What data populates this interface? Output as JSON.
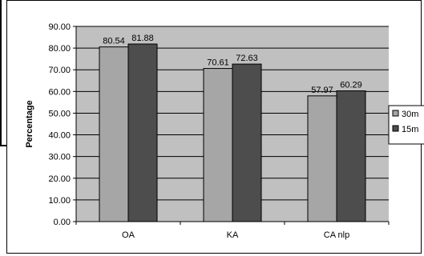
{
  "chart_data": {
    "type": "bar",
    "title": "",
    "xlabel": "",
    "ylabel": "Percentage",
    "ylim": [
      0,
      90
    ],
    "ytick_step": 10,
    "ytick_labels": [
      "0.00",
      "10.00",
      "20.00",
      "30.00",
      "40.00",
      "50.00",
      "60.00",
      "70.00",
      "80.00",
      "90.00"
    ],
    "categories": [
      "OA",
      "KA",
      "CA nlp"
    ],
    "series": [
      {
        "name": "30m",
        "values": [
          80.54,
          70.61,
          57.97
        ],
        "labels": [
          "80.54",
          "70.61",
          "57.97"
        ],
        "color": "#a6a6a6"
      },
      {
        "name": "15m",
        "values": [
          81.88,
          72.63,
          60.29
        ],
        "labels": [
          "81.88",
          "72.63",
          "60.29"
        ],
        "color": "#4d4d4d"
      }
    ],
    "plot_background": "#c0c0c0",
    "grid": true,
    "legend_position": "right"
  }
}
